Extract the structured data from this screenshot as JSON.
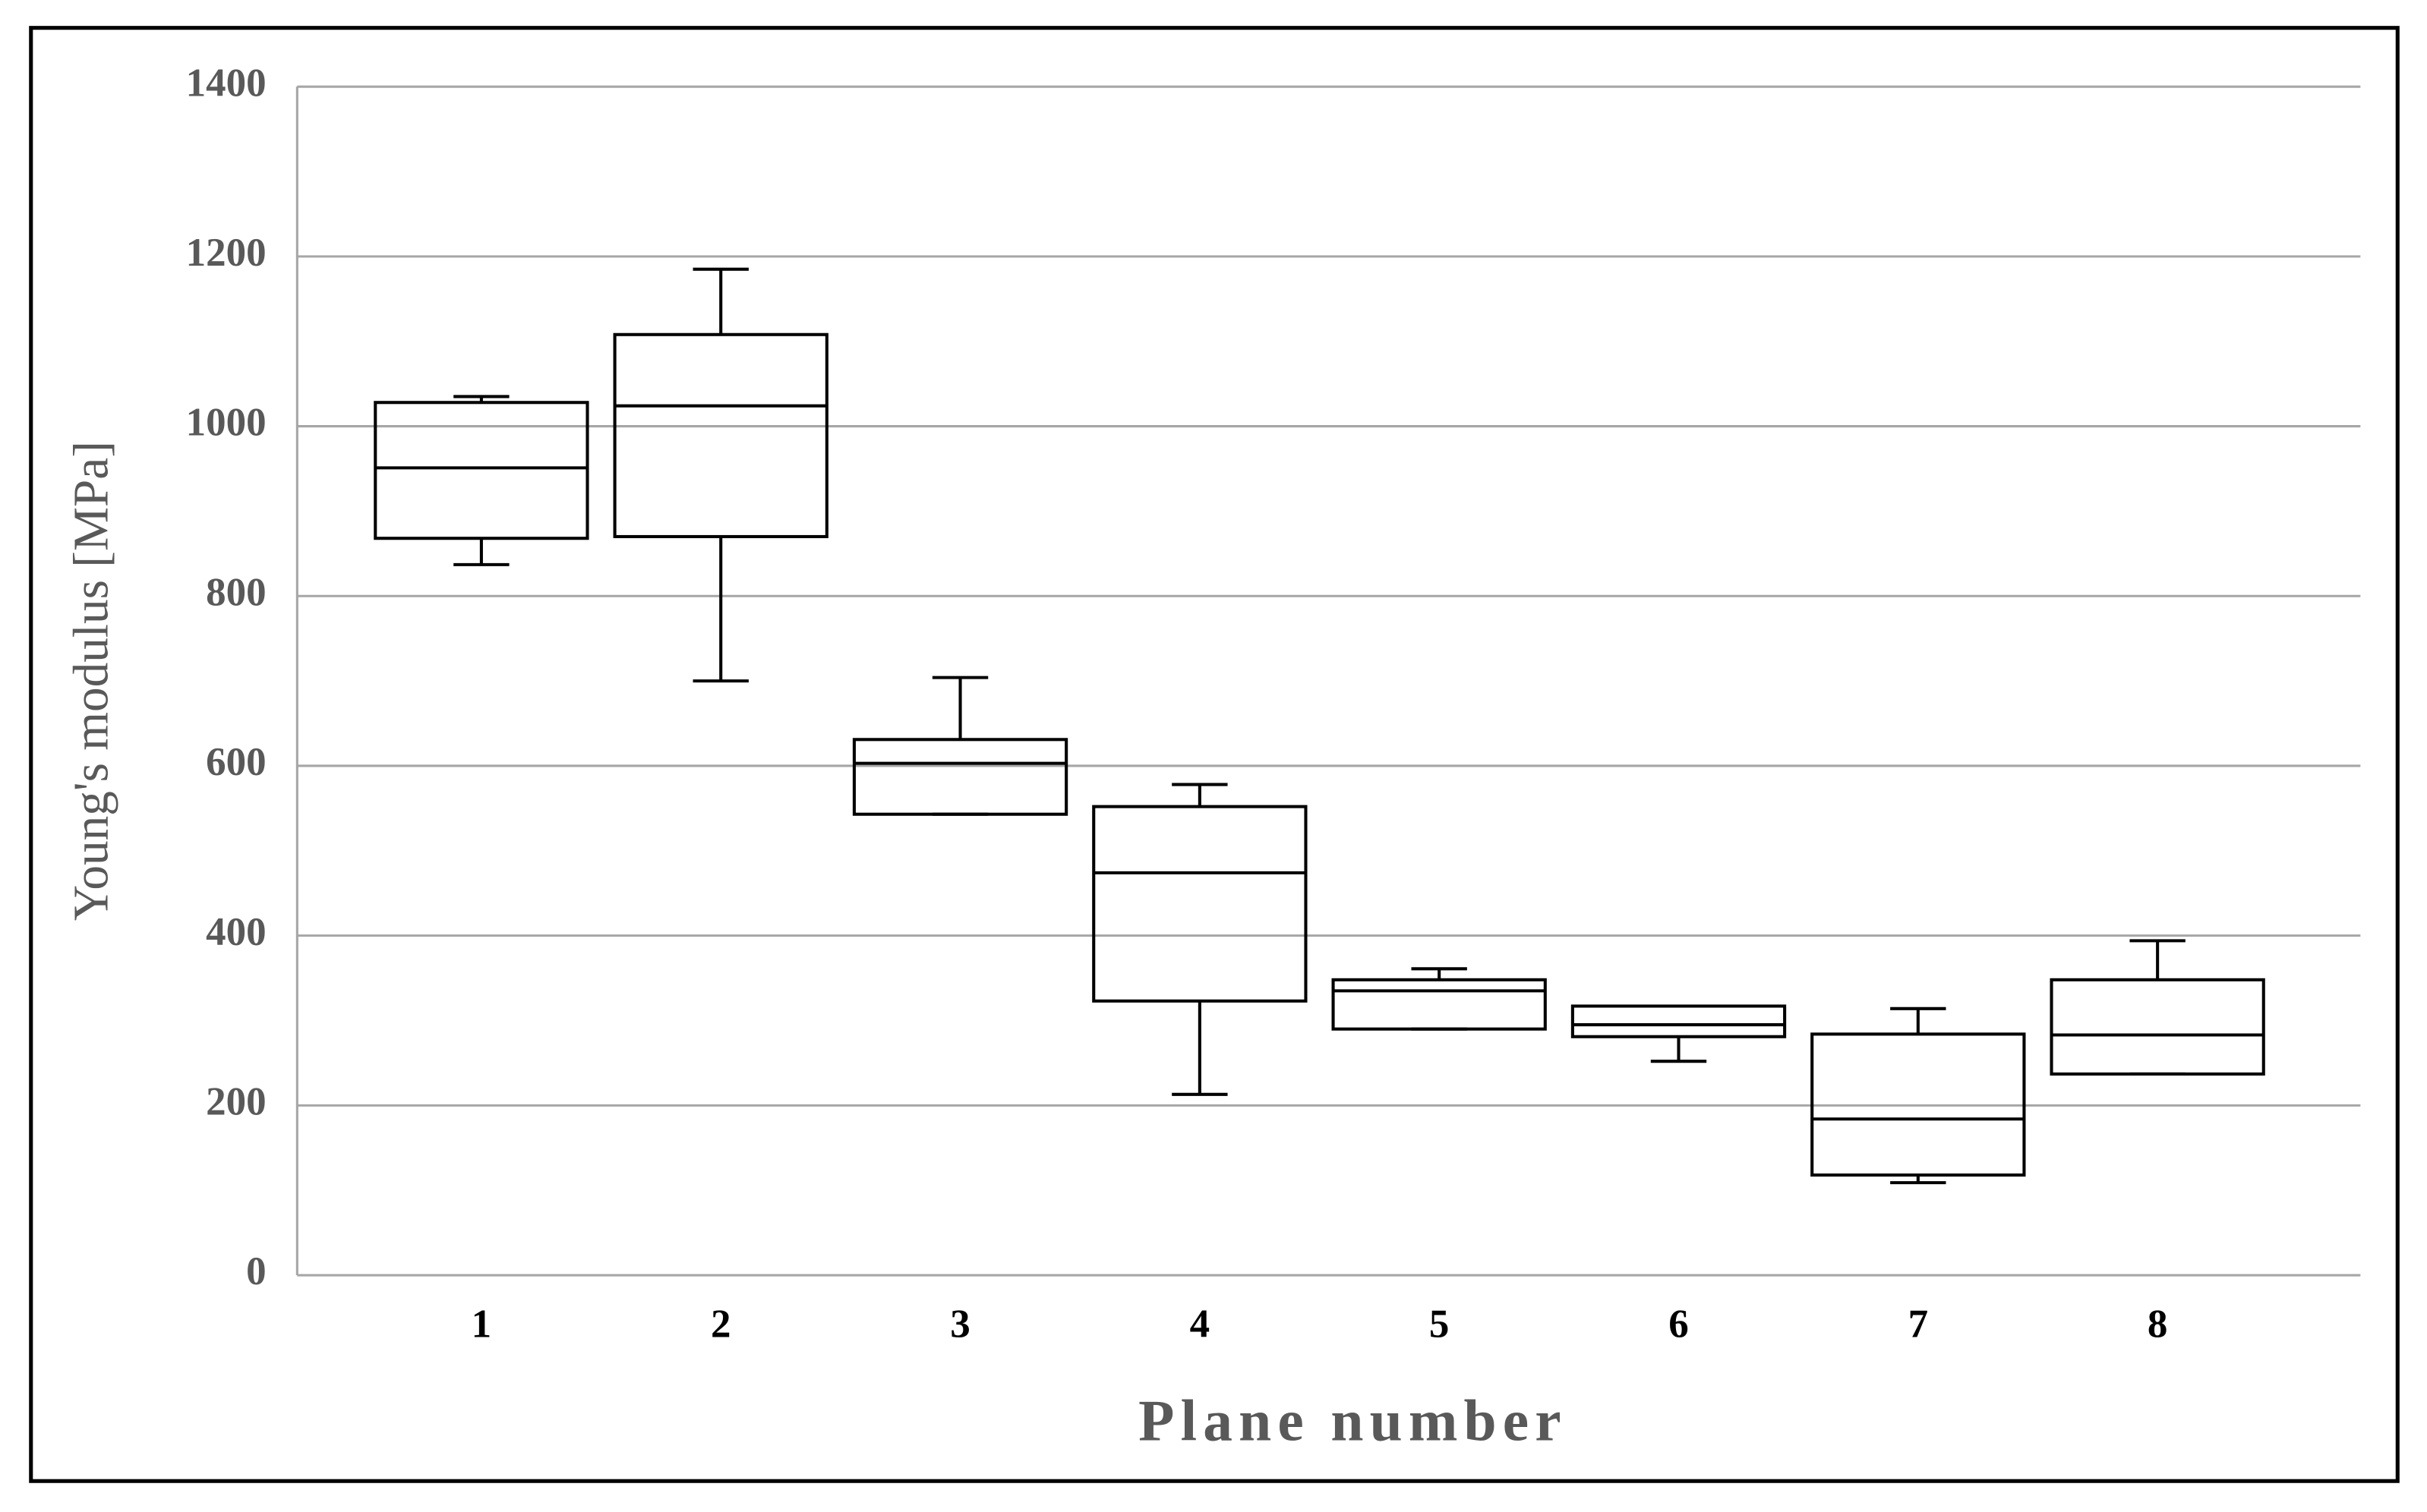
{
  "chart_data": {
    "type": "box",
    "y_label": "Young's modulus [MPa]",
    "x_label": "Plane number",
    "categories": [
      "1",
      "2",
      "3",
      "4",
      "5",
      "6",
      "7",
      "8"
    ],
    "boxes": [
      {
        "min": 837,
        "q1": 868,
        "median": 951,
        "q3": 1028,
        "max": 1035
      },
      {
        "min": 700,
        "q1": 870,
        "median": 1024,
        "q3": 1108,
        "max": 1185
      },
      {
        "min": 543,
        "q1": 543,
        "median": 603,
        "q3": 631,
        "max": 704
      },
      {
        "min": 213,
        "q1": 323,
        "median": 474,
        "q3": 552,
        "max": 578
      },
      {
        "min": 290,
        "q1": 290,
        "median": 335,
        "q3": 348,
        "max": 361
      },
      {
        "min": 252,
        "q1": 281,
        "median": 295,
        "q3": 317,
        "max": 317
      },
      {
        "min": 109,
        "q1": 118,
        "median": 184,
        "q3": 284,
        "max": 314
      },
      {
        "min": 237,
        "q1": 237,
        "median": 283,
        "q3": 348,
        "max": 394
      }
    ],
    "color": "#000000",
    "ylim": [
      0,
      1400
    ],
    "yticks": [
      0,
      200,
      400,
      600,
      800,
      1000,
      1200,
      1400
    ],
    "grid": true
  }
}
